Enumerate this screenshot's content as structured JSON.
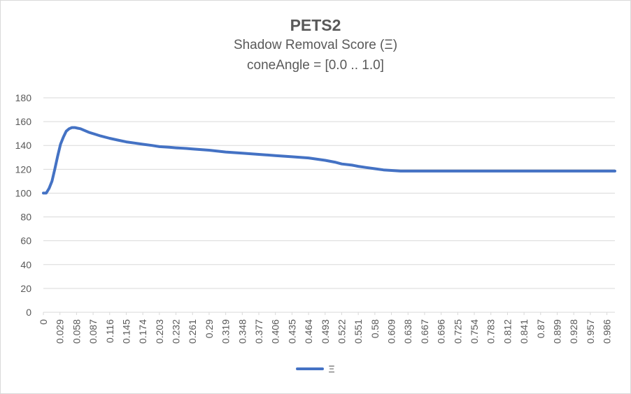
{
  "chart_data": {
    "type": "line",
    "title": "PETS2",
    "subtitle": "Shadow Removal Score (Ξ)",
    "subtitle2": "coneAngle = [0.0 .. 1.0]",
    "xlabel": "",
    "ylabel": "",
    "ylim": [
      0,
      180
    ],
    "yticks": [
      0,
      20,
      40,
      60,
      80,
      100,
      120,
      140,
      160,
      180
    ],
    "xlim": [
      0,
      1.0
    ],
    "xticks": [
      "0",
      "0.029",
      "0.058",
      "0.087",
      "0.116",
      "0.145",
      "0.174",
      "0.203",
      "0.232",
      "0.261",
      "0.29",
      "0.319",
      "0.348",
      "0.377",
      "0.406",
      "0.435",
      "0.464",
      "0.493",
      "0.522",
      "0.551",
      "0.58",
      "0.609",
      "0.638",
      "0.667",
      "0.696",
      "0.725",
      "0.754",
      "0.783",
      "0.812",
      "0.841",
      "0.87",
      "0.899",
      "0.928",
      "0.957",
      "0.986"
    ],
    "grid": "horizontal",
    "legend_position": "bottom",
    "color": "#4472c4",
    "series": [
      {
        "name": "Ξ",
        "x": [
          0,
          0.005,
          0.01,
          0.015,
          0.02,
          0.025,
          0.03,
          0.035,
          0.04,
          0.045,
          0.05,
          0.055,
          0.06,
          0.065,
          0.07,
          0.08,
          0.09,
          0.1,
          0.116,
          0.13,
          0.145,
          0.16,
          0.174,
          0.19,
          0.203,
          0.22,
          0.232,
          0.25,
          0.261,
          0.29,
          0.319,
          0.348,
          0.377,
          0.406,
          0.435,
          0.464,
          0.493,
          0.51,
          0.522,
          0.54,
          0.551,
          0.565,
          0.58,
          0.595,
          0.609,
          0.625,
          0.638,
          0.667,
          0.7,
          0.75,
          0.8,
          0.85,
          0.9,
          0.95,
          1.0
        ],
        "values": [
          100,
          100,
          104,
          110,
          120,
          131,
          141,
          147,
          152,
          154,
          155,
          155,
          154.5,
          154,
          153,
          151,
          149.5,
          148,
          146,
          144.5,
          143,
          142,
          141,
          140,
          139,
          138.5,
          138,
          137.5,
          137,
          136,
          134.5,
          133.5,
          132.5,
          131.5,
          130.5,
          129.5,
          127.5,
          126,
          124.5,
          123.5,
          122.5,
          121.5,
          120.5,
          119.5,
          119,
          118.5,
          118.5,
          118.5,
          118.5,
          118.5,
          118.5,
          118.5,
          118.5,
          118.5,
          118.5
        ]
      }
    ]
  }
}
